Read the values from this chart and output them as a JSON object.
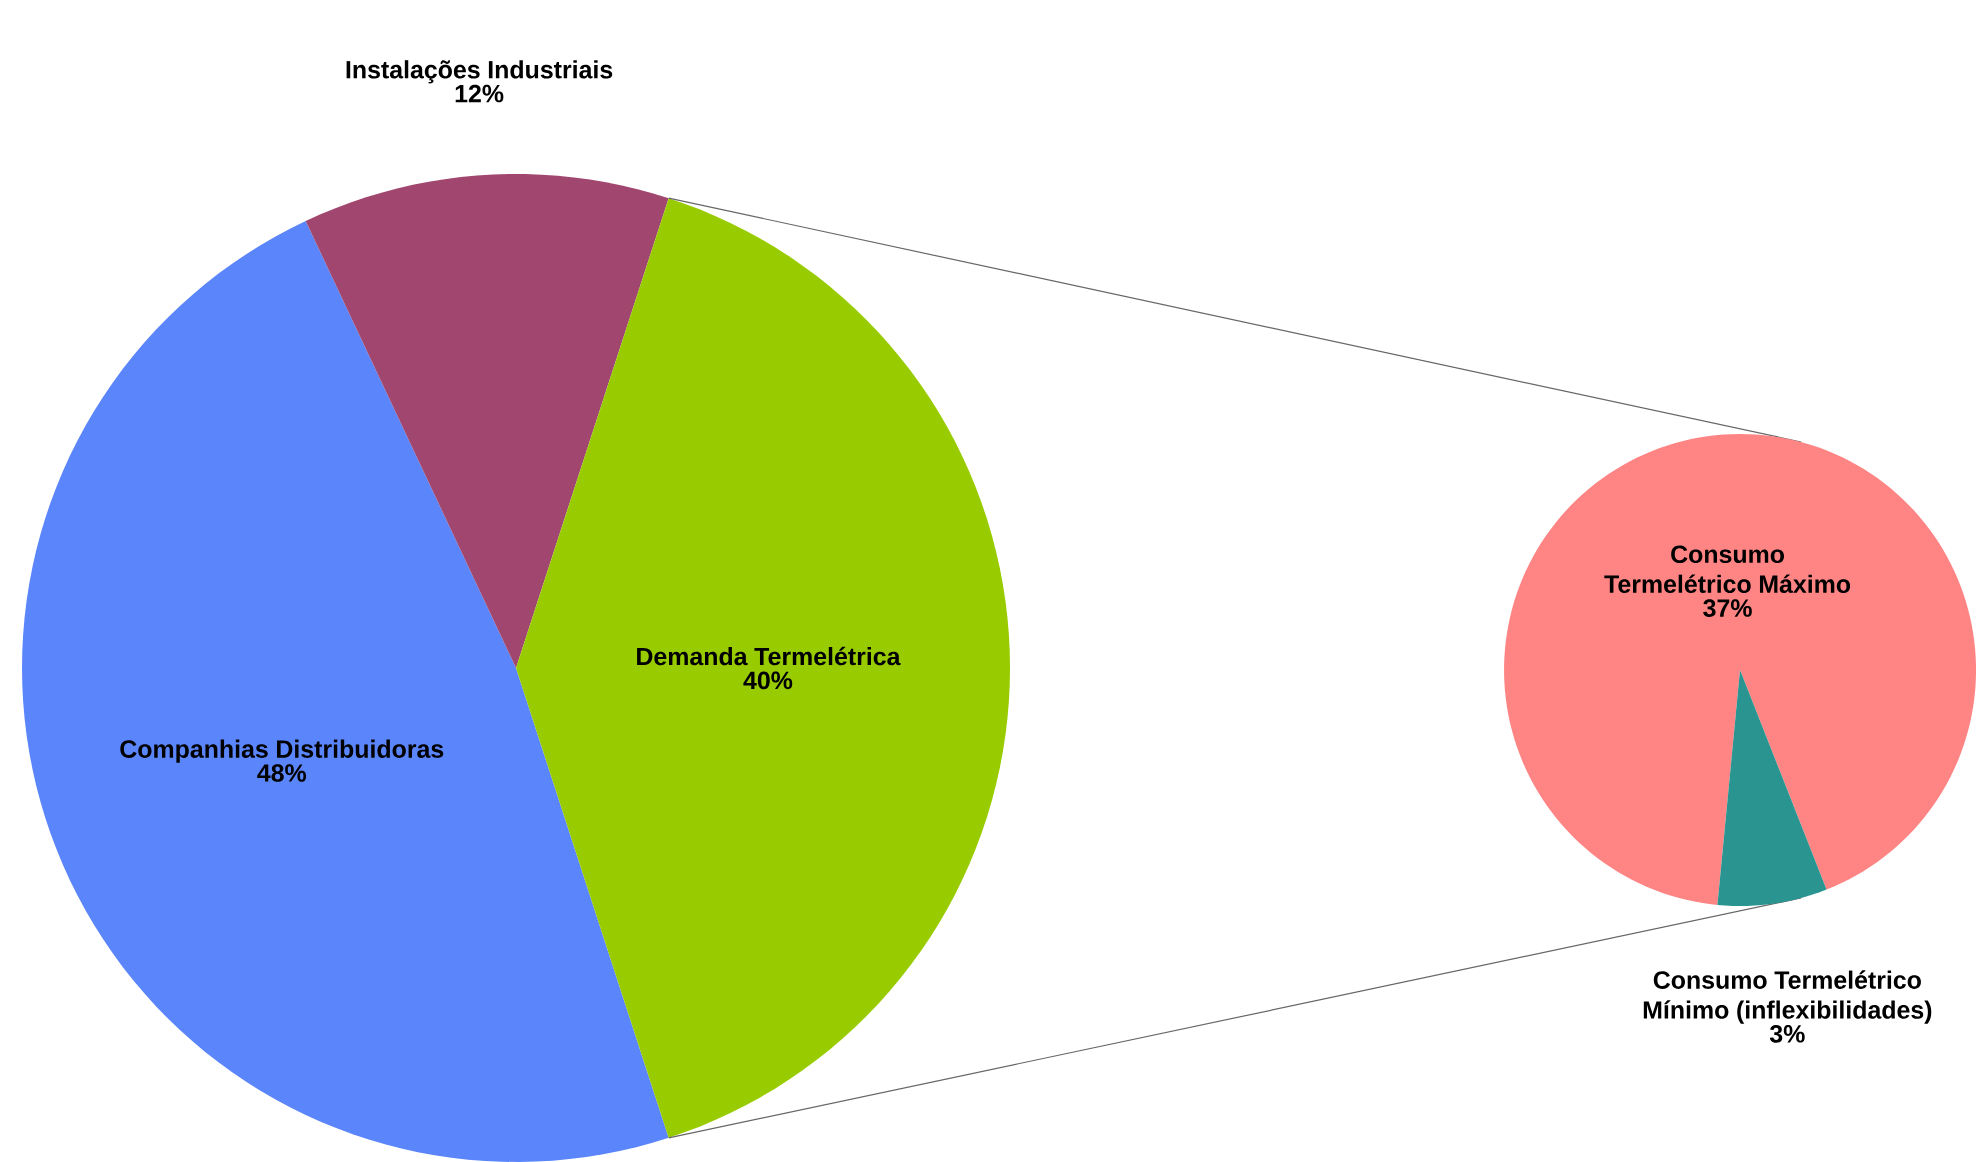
{
  "chart_data": [
    {
      "type": "pie",
      "categories": [
        "Companhias Distribuidoras",
        "Instalações Industriais",
        "Demanda Termelétrica"
      ],
      "values": [
        48,
        12,
        40
      ],
      "colors": [
        "#5b85fb",
        "#a0466f",
        "#99cc00"
      ],
      "value_labels": [
        "48%",
        "12%",
        "40%"
      ]
    },
    {
      "type": "pie",
      "categories": [
        "Consumo Termelétrico Máximo",
        "Consumo Termelétrico Mínimo (inflexibilidades)"
      ],
      "values": [
        37,
        3
      ],
      "colors": [
        "#ff8585",
        "#2a9490"
      ],
      "value_labels": [
        "37%",
        "3%"
      ]
    }
  ]
}
